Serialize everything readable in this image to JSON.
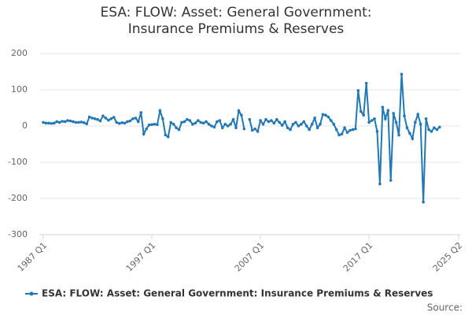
{
  "chart_data": {
    "type": "line",
    "title": "ESA: FLOW: Asset: General Government: Insurance Premiums & Reserves",
    "source": "Source:",
    "x": [
      "1987 Q1",
      "1987 Q2",
      "1987 Q3",
      "1987 Q4",
      "1988 Q1",
      "1988 Q2",
      "1988 Q3",
      "1988 Q4",
      "1989 Q1",
      "1989 Q2",
      "1989 Q3",
      "1989 Q4",
      "1990 Q1",
      "1990 Q2",
      "1990 Q3",
      "1990 Q4",
      "1991 Q1",
      "1991 Q2",
      "1991 Q3",
      "1991 Q4",
      "1992 Q1",
      "1992 Q2",
      "1992 Q3",
      "1992 Q4",
      "1993 Q1",
      "1993 Q2",
      "1993 Q3",
      "1993 Q4",
      "1994 Q1",
      "1994 Q2",
      "1994 Q3",
      "1994 Q4",
      "1995 Q1",
      "1995 Q2",
      "1995 Q3",
      "1995 Q4",
      "1996 Q1",
      "1996 Q2",
      "1996 Q3",
      "1996 Q4",
      "1997 Q1",
      "1997 Q2",
      "1997 Q3",
      "1997 Q4",
      "1998 Q1",
      "1998 Q2",
      "1998 Q3",
      "1998 Q4",
      "1999 Q1",
      "1999 Q2",
      "1999 Q3",
      "1999 Q4",
      "2000 Q1",
      "2000 Q2",
      "2000 Q3",
      "2000 Q4",
      "2001 Q1",
      "2001 Q2",
      "2001 Q3",
      "2001 Q4",
      "2002 Q1",
      "2002 Q2",
      "2002 Q3",
      "2002 Q4",
      "2003 Q1",
      "2003 Q2",
      "2003 Q3",
      "2003 Q4",
      "2004 Q1",
      "2004 Q2",
      "2004 Q3",
      "2004 Q4",
      "2005 Q1",
      "2005 Q2",
      "2005 Q3",
      "2005 Q4",
      "2006 Q1",
      "2006 Q2",
      "2006 Q3",
      "2006 Q4",
      "2007 Q1",
      "2007 Q2",
      "2007 Q3",
      "2007 Q4",
      "2008 Q1",
      "2008 Q2",
      "2008 Q3",
      "2008 Q4",
      "2009 Q1",
      "2009 Q2",
      "2009 Q3",
      "2009 Q4",
      "2010 Q1",
      "2010 Q2",
      "2010 Q3",
      "2010 Q4",
      "2011 Q1",
      "2011 Q2",
      "2011 Q3",
      "2011 Q4",
      "2012 Q1",
      "2012 Q2",
      "2012 Q3",
      "2012 Q4",
      "2013 Q1",
      "2013 Q2",
      "2013 Q3",
      "2013 Q4",
      "2014 Q1",
      "2014 Q2",
      "2014 Q3",
      "2014 Q4",
      "2015 Q1",
      "2015 Q2",
      "2015 Q3",
      "2015 Q4",
      "2016 Q1",
      "2016 Q2",
      "2016 Q3",
      "2016 Q4",
      "2017 Q1",
      "2017 Q2",
      "2017 Q3",
      "2017 Q4",
      "2018 Q1",
      "2018 Q2",
      "2018 Q3",
      "2018 Q4",
      "2019 Q1",
      "2019 Q2",
      "2019 Q3",
      "2019 Q4",
      "2020 Q1",
      "2020 Q2",
      "2020 Q3",
      "2020 Q4",
      "2021 Q1",
      "2021 Q2",
      "2021 Q3",
      "2021 Q4",
      "2022 Q1",
      "2022 Q2",
      "2022 Q3",
      "2022 Q4",
      "2023 Q1",
      "2023 Q2",
      "2023 Q3"
    ],
    "series": [
      {
        "name": "ESA: FLOW: Asset: General Government: Insurance Premiums & Reserves",
        "color": "#2277b4",
        "values": [
          10,
          8,
          8,
          7,
          8,
          12,
          10,
          13,
          12,
          15,
          14,
          12,
          10,
          10,
          11,
          9,
          6,
          25,
          22,
          20,
          18,
          14,
          28,
          22,
          16,
          20,
          24,
          10,
          7,
          9,
          8,
          12,
          14,
          20,
          22,
          12,
          37,
          -22,
          -8,
          3,
          4,
          5,
          4,
          42,
          20,
          -25,
          -30,
          10,
          5,
          -5,
          -10,
          10,
          12,
          18,
          15,
          5,
          8,
          15,
          10,
          8,
          12,
          5,
          0,
          -3,
          12,
          15,
          -5,
          5,
          0,
          5,
          18,
          -5,
          42,
          30,
          -8,
          null,
          18,
          -12,
          -8,
          -15,
          15,
          5,
          18,
          12,
          15,
          8,
          18,
          10,
          2,
          12,
          -5,
          -10,
          5,
          10,
          0,
          5,
          12,
          0,
          -10,
          5,
          22,
          -5,
          5,
          32,
          30,
          25,
          15,
          5,
          -10,
          -25,
          -22,
          -5,
          -18,
          -12,
          -10,
          -8,
          98,
          40,
          30,
          118,
          10,
          15,
          20,
          -15,
          -160,
          52,
          20,
          43,
          -150,
          35,
          10,
          -25,
          143,
          28,
          -5,
          -20,
          -35,
          10,
          32,
          5,
          -210,
          20,
          -10,
          -15,
          -5,
          -10,
          -3
        ]
      }
    ],
    "xlim": [
      "1987 Q1",
      "2025 Q2"
    ],
    "xticks": [
      "1987 Q1",
      "1997 Q1",
      "2007 Q1",
      "2017 Q1",
      "2025 Q2"
    ],
    "ylim": [
      -300,
      200
    ],
    "yticks": [
      -300,
      -200,
      -100,
      0,
      100,
      200
    ],
    "grid": true,
    "legend": "bottom"
  }
}
